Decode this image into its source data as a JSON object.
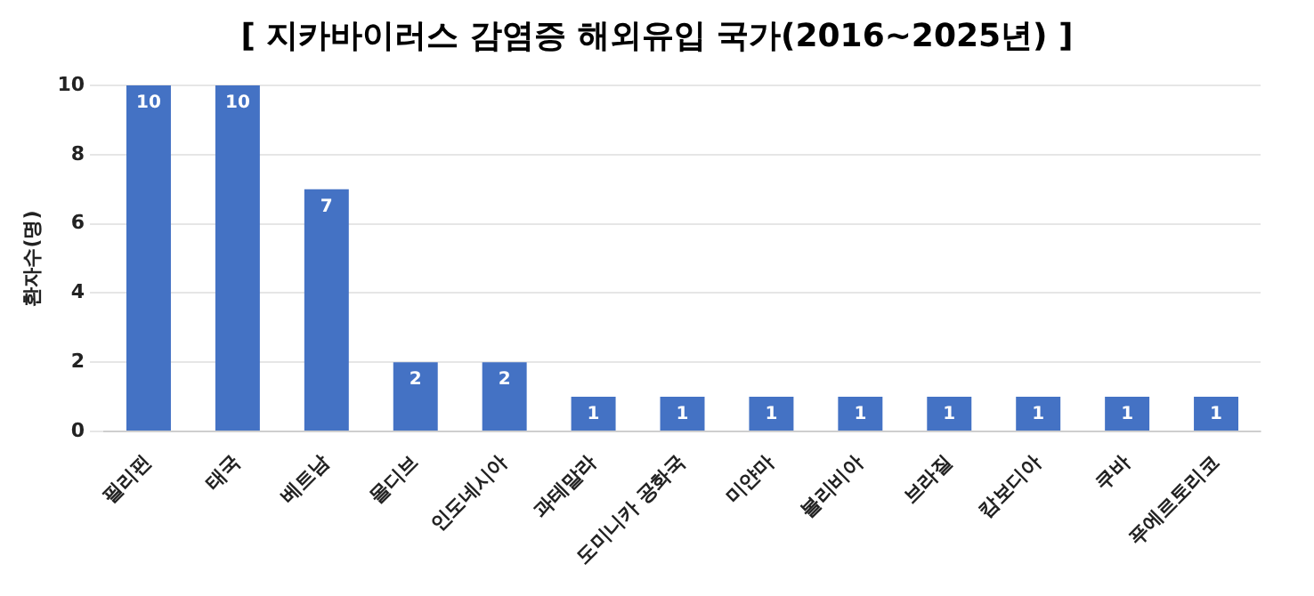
{
  "chart_data": {
    "type": "bar",
    "title": "[ 지카바이러스 감염증 해외유입 국가(2016~2025년) ]",
    "ylabel": "환자수(명)",
    "categories": [
      "필리핀",
      "태국",
      "베트남",
      "몰디브",
      "인도네시아",
      "과테말라",
      "도미니카 공화국",
      "미얀마",
      "볼리비아",
      "브라질",
      "캄보디아",
      "쿠바",
      "푸에르토리코"
    ],
    "values": [
      10,
      10,
      7,
      2,
      2,
      1,
      1,
      1,
      1,
      1,
      1,
      1,
      1
    ],
    "color": "#4472c4",
    "ylim": [
      0,
      10
    ],
    "yticks": [
      0,
      2,
      4,
      6,
      8,
      10
    ],
    "grid": "y",
    "data_labels": true
  }
}
